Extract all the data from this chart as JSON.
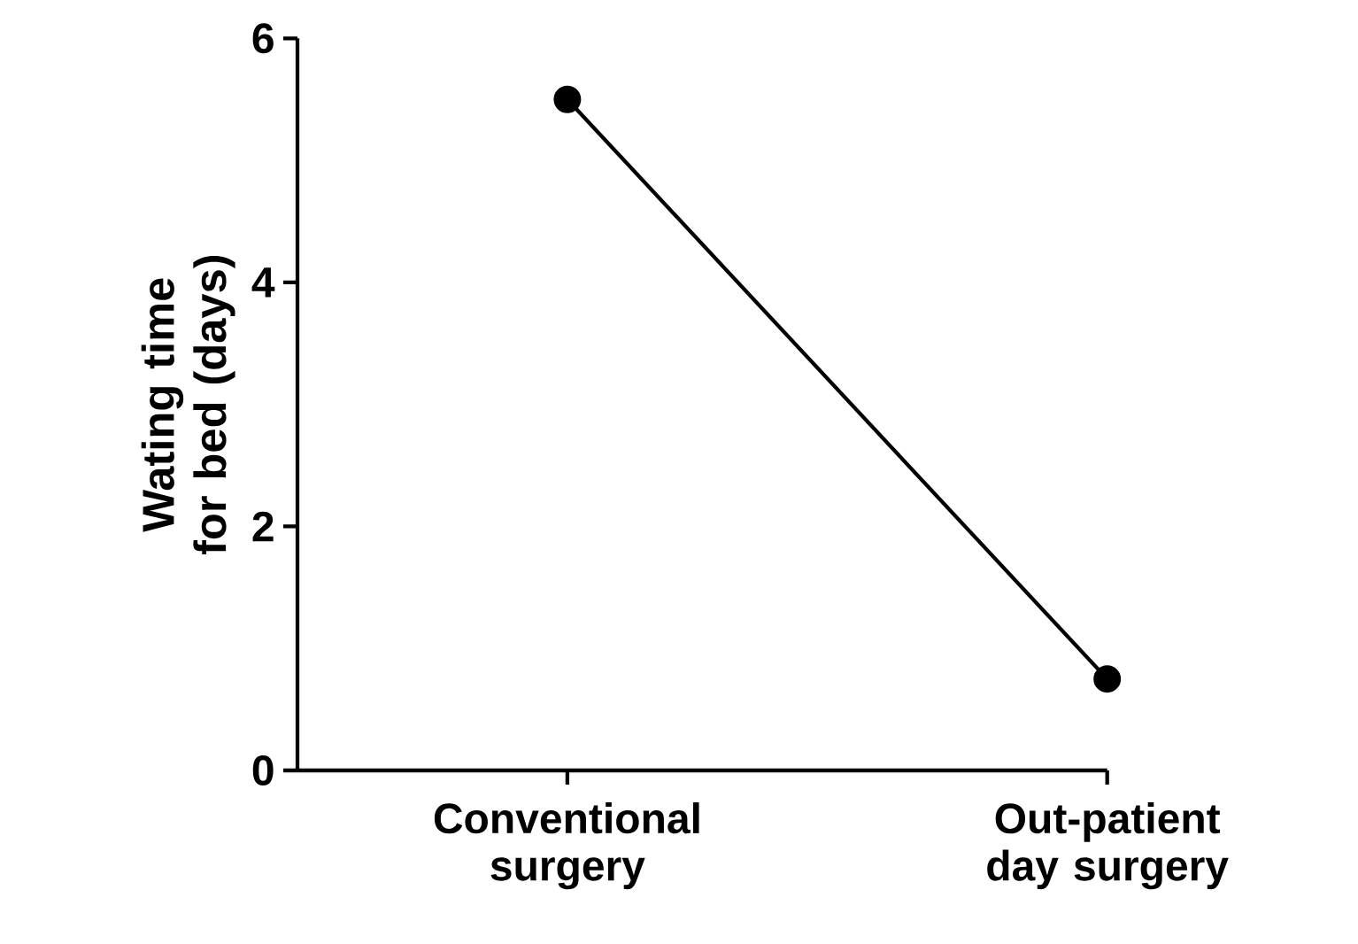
{
  "chart_data": {
    "type": "line",
    "categories": [
      "Conventional surgery",
      "Out-patient day surgery"
    ],
    "ylabel": "Wating time for bed (days)",
    "series": [
      {
        "color": "#000000",
        "values": [
          5.5,
          0.75
        ]
      }
    ],
    "ylim": [
      0,
      6
    ],
    "yticks": [
      0,
      2,
      4,
      6
    ],
    "marker": "circle",
    "grid": false
  }
}
